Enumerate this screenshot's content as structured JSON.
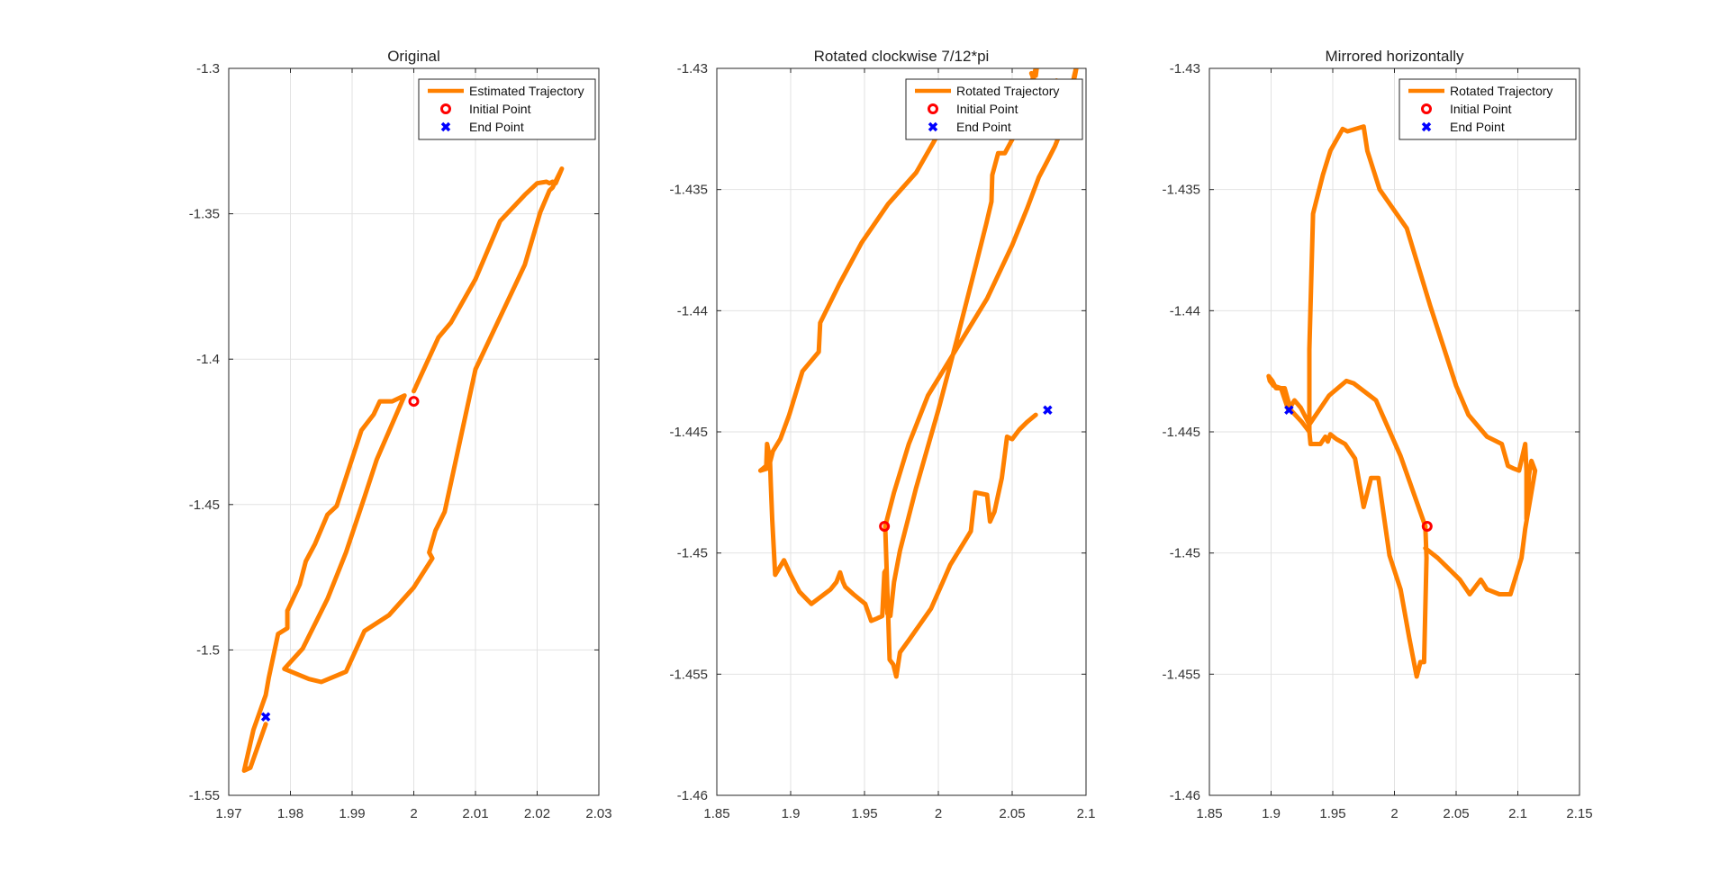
{
  "figure": {
    "background": "#ffffff"
  },
  "colors": {
    "trajectory": "#ff8000",
    "initial_point": "#ff0000",
    "end_point": "#0000ff"
  },
  "icons": {
    "initial_point": "circle-marker",
    "end_point": "x-marker"
  },
  "chart_data": [
    {
      "type": "line",
      "title": "Original",
      "xlabel": "",
      "ylabel": "",
      "xlim": [
        1.97,
        2.03
      ],
      "ylim": [
        -1.55,
        -1.3
      ],
      "xticks": [
        1.97,
        1.98,
        1.99,
        2.0,
        2.01,
        2.02,
        2.03
      ],
      "xtick_labels": [
        "1.97",
        "1.98",
        "1.99",
        "2",
        "2.01",
        "2.02",
        "2.03"
      ],
      "yticks": [
        -1.55,
        -1.5,
        -1.45,
        -1.4,
        -1.35,
        -1.3
      ],
      "ytick_labels": [
        "-1.55",
        "-1.5",
        "-1.45",
        "-1.4",
        "-1.35",
        "-1.3"
      ],
      "grid": true,
      "legend_position": "top-right",
      "series": [
        {
          "name": "Estimated Trajectory",
          "x": [
            2.0,
            2.004,
            2.006,
            2.01,
            2.014,
            2.018,
            2.02,
            2.0215,
            2.022,
            2.0225,
            2.023,
            2.024,
            2.0225,
            2.022,
            2.0205,
            2.018,
            2.017,
            2.01,
            2.005,
            2.0035,
            2.0025,
            2.003,
            2.0,
            1.996,
            1.992,
            1.989,
            1.985,
            1.983,
            1.979,
            1.982,
            1.986,
            1.989,
            1.992,
            1.994,
            1.9985,
            1.9965,
            1.9945,
            1.9935,
            1.9935,
            1.9915,
            1.9895,
            1.9875,
            1.986,
            1.984,
            1.9825,
            1.9815,
            1.9795,
            1.9795,
            1.978,
            1.9765,
            1.976,
            1.974,
            1.9725,
            1.9735,
            1.976
          ],
          "y": [
            -1.411,
            -1.3925,
            -1.3875,
            -1.3725,
            -1.3525,
            -1.3435,
            -1.3395,
            -1.339,
            -1.3395,
            -1.339,
            -1.3395,
            -1.3345,
            -1.341,
            -1.342,
            -1.3495,
            -1.3675,
            -1.372,
            -1.4035,
            -1.4525,
            -1.459,
            -1.4665,
            -1.4685,
            -1.4785,
            -1.488,
            -1.4935,
            -1.5075,
            -1.511,
            -1.51,
            -1.5065,
            -1.4995,
            -1.4825,
            -1.4665,
            -1.4475,
            -1.4345,
            -1.4125,
            -1.4145,
            -1.4145,
            -1.419,
            -1.419,
            -1.4245,
            -1.4375,
            -1.4505,
            -1.4535,
            -1.4635,
            -1.4695,
            -1.4775,
            -1.4865,
            -1.4925,
            -1.4945,
            -1.5095,
            -1.5155,
            -1.5275,
            -1.5415,
            -1.5405,
            -1.5255
          ]
        }
      ],
      "markers": {
        "initial": {
          "name": "Initial Point",
          "x": 2.0,
          "y": -1.4145
        },
        "end": {
          "name": "End Point",
          "x": 1.976,
          "y": -1.523
        }
      }
    },
    {
      "type": "line",
      "title": "Rotated clockwise 7/12*pi",
      "xlabel": "",
      "ylabel": "",
      "xlim": [
        1.85,
        2.1
      ],
      "ylim": [
        -1.46,
        -1.43
      ],
      "xticks": [
        1.85,
        1.9,
        1.95,
        2.0,
        2.05,
        2.1
      ],
      "xtick_labels": [
        "1.85",
        "1.9",
        "1.95",
        "2",
        "2.05",
        "2.1"
      ],
      "yticks": [
        -1.46,
        -1.455,
        -1.45,
        -1.445,
        -1.44,
        -1.435,
        -1.43
      ],
      "ytick_labels": [
        "-1.46",
        "-1.455",
        "-1.45",
        "-1.445",
        "-1.44",
        "-1.435",
        "-1.43"
      ],
      "grid": true,
      "legend_position": "top-right",
      "series": [
        {
          "name": "Rotated Trajectory",
          "x": [
            1.964,
            1.97,
            1.98,
            1.993,
            2.005,
            2.016,
            2.025,
            2.033,
            2.05,
            2.06,
            2.068,
            2.074,
            2.079,
            2.083,
            2.085,
            2.0875,
            2.09,
            2.092,
            2.094,
            2.0925,
            2.09,
            2.0875,
            2.08,
            2.076,
            2.073,
            2.065,
            2.063,
            2.0645,
            2.066,
            2.067,
            2.063,
            2.058,
            2.053,
            2.045,
            2.0405,
            2.0365,
            2.036,
            2.0325,
            2.0255,
            2.0125,
            2.0,
            1.985,
            1.974,
            1.97,
            1.9675,
            1.9655,
            1.9645,
            1.9635,
            1.962,
            1.9585,
            1.9545,
            1.9505,
            1.9425,
            1.937,
            1.9355,
            1.9335,
            1.931,
            1.927,
            1.914,
            1.906,
            1.9,
            1.8955,
            1.8895,
            1.8875,
            1.8865,
            1.8865,
            1.886,
            1.884,
            1.8835,
            1.8815,
            1.8795,
            1.885,
            1.888,
            1.893,
            1.899,
            1.908,
            1.919,
            1.92,
            1.933,
            1.948,
            1.966,
            1.985,
            2.0,
            2.011,
            2.015
          ],
          "y": [
            -1.4489,
            -1.4475,
            -1.4455,
            -1.4435,
            -1.4423,
            -1.4412,
            -1.4403,
            -1.4395,
            -1.4373,
            -1.4358,
            -1.4345,
            -1.4338,
            -1.4332,
            -1.4326,
            -1.4321,
            -1.4315,
            -1.4309,
            -1.4303,
            -1.4298,
            -1.4303,
            -1.4309,
            -1.4313,
            -1.4305,
            -1.4308,
            -1.4307,
            -1.4305,
            -1.4302,
            -1.4303,
            -1.4303,
            -1.4298,
            -1.4306,
            -1.4318,
            -1.4326,
            -1.4335,
            -1.4335,
            -1.4344,
            -1.4355,
            -1.4364,
            -1.4381,
            -1.4412,
            -1.4441,
            -1.4473,
            -1.4499,
            -1.4512,
            -1.4526,
            -1.4525,
            -1.4507,
            -1.4508,
            -1.4526,
            -1.4527,
            -1.4528,
            -1.4521,
            -1.4517,
            -1.4514,
            -1.4512,
            -1.4508,
            -1.4512,
            -1.4515,
            -1.4521,
            -1.4516,
            -1.4509,
            -1.4503,
            -1.4509,
            -1.4486,
            -1.4471,
            -1.4471,
            -1.4461,
            -1.4455,
            -1.4464,
            -1.4465,
            -1.4466,
            -1.4465,
            -1.4458,
            -1.4453,
            -1.4443,
            -1.4425,
            -1.4417,
            -1.4405,
            -1.4389,
            -1.4372,
            -1.4356,
            -1.4343,
            -1.4327,
            -1.4317,
            -1.4313
          ],
          "extra_x": [
            1.964,
            1.967,
            1.9695,
            1.9715,
            1.974,
            1.98,
            1.995,
            2.003,
            2.008,
            2.022,
            2.025,
            2.033,
            2.035,
            2.038,
            2.043,
            2.0465,
            2.05,
            2.055,
            2.06,
            2.066
          ],
          "extra_y": [
            -1.4489,
            -1.4544,
            -1.4546,
            -1.4551,
            -1.4541,
            -1.4536,
            -1.4523,
            -1.4512,
            -1.4505,
            -1.4491,
            -1.4475,
            -1.4476,
            -1.4487,
            -1.4483,
            -1.4469,
            -1.4452,
            -1.4453,
            -1.4449,
            -1.4446,
            -1.4443
          ]
        }
      ],
      "markers": {
        "initial": {
          "name": "Initial Point",
          "x": 1.9635,
          "y": -1.4489
        },
        "end": {
          "name": "End Point",
          "x": 2.074,
          "y": -1.4441
        }
      }
    },
    {
      "type": "line",
      "title": "Mirrored horizontally",
      "xlabel": "",
      "ylabel": "",
      "xlim": [
        1.85,
        2.15
      ],
      "ylim": [
        -1.46,
        -1.43
      ],
      "xticks": [
        1.85,
        1.9,
        1.95,
        2.0,
        2.05,
        2.1,
        2.15
      ],
      "xtick_labels": [
        "1.85",
        "1.9",
        "1.95",
        "2",
        "2.05",
        "2.1",
        "2.15"
      ],
      "yticks": [
        -1.46,
        -1.455,
        -1.45,
        -1.445,
        -1.44,
        -1.435,
        -1.43
      ],
      "ytick_labels": [
        "-1.46",
        "-1.455",
        "-1.45",
        "-1.445",
        "-1.44",
        "-1.435",
        "-1.43"
      ],
      "grid": true,
      "legend_position": "top-right",
      "series": [
        {
          "name": "Rotated Trajectory",
          "x": [
            2.025,
            2.026,
            2.024,
            2.021,
            2.018,
            2.012,
            2.005,
            1.996,
            1.987,
            1.981,
            1.975,
            1.968,
            1.96,
            1.953,
            1.948,
            1.946,
            1.944,
            1.94,
            1.932,
            1.931,
            1.931,
            1.934,
            1.936,
            1.942,
            1.948,
            1.958,
            1.962,
            1.975,
            1.978,
            1.988,
            2.01,
            2.029,
            2.05,
            2.06,
            2.075,
            2.087,
            2.092,
            2.096,
            2.101,
            2.106,
            2.107,
            2.107,
            2.109,
            2.111,
            2.114,
            2.106,
            2.103,
            2.094,
            2.085,
            2.075,
            2.07,
            2.061,
            2.053,
            2.043,
            2.035,
            2.025
          ],
          "y": [
            -1.4489,
            -1.4502,
            -1.4545,
            -1.4545,
            -1.4551,
            -1.4535,
            -1.4515,
            -1.4501,
            -1.4469,
            -1.4469,
            -1.4481,
            -1.4461,
            -1.4455,
            -1.4453,
            -1.4451,
            -1.4454,
            -1.4452,
            -1.4455,
            -1.4455,
            -1.445,
            -1.4416,
            -1.436,
            -1.4356,
            -1.4344,
            -1.4334,
            -1.4325,
            -1.4326,
            -1.4324,
            -1.4334,
            -1.435,
            -1.4366,
            -1.4398,
            -1.4431,
            -1.4443,
            -1.4452,
            -1.4455,
            -1.4464,
            -1.4465,
            -1.4466,
            -1.4455,
            -1.4466,
            -1.4486,
            -1.4468,
            -1.4462,
            -1.4466,
            -1.449,
            -1.4502,
            -1.4517,
            -1.4517,
            -1.4515,
            -1.4511,
            -1.4517,
            -1.4511,
            -1.4506,
            -1.4502,
            -1.4498
          ],
          "extra_x": [
            2.025,
            2.005,
            1.985,
            1.967,
            1.961,
            1.947,
            1.931,
            1.924,
            1.919,
            1.914,
            1.908,
            1.902,
            1.899,
            1.898,
            1.901,
            1.904,
            1.911,
            1.916,
            1.925,
            1.931
          ],
          "extra_y": [
            -1.4489,
            -1.446,
            -1.4437,
            -1.443,
            -1.4429,
            -1.4435,
            -1.4447,
            -1.444,
            -1.4437,
            -1.4441,
            -1.4432,
            -1.4431,
            -1.4429,
            -1.4427,
            -1.4429,
            -1.4432,
            -1.4432,
            -1.4441,
            -1.4446,
            -1.445
          ]
        }
      ],
      "markers": {
        "initial": {
          "name": "Initial Point",
          "x": 2.0265,
          "y": -1.4489
        },
        "end": {
          "name": "End Point",
          "x": 1.9145,
          "y": -1.4441
        }
      }
    }
  ]
}
